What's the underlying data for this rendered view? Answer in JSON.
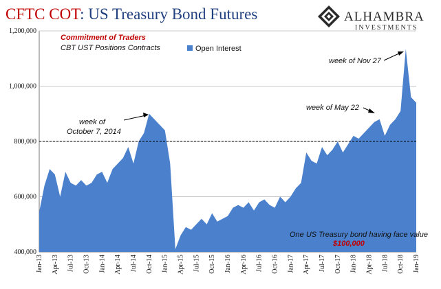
{
  "header": {
    "title_part1": "CFTC COT",
    "title_part2": ": US Treasury Bond Futures",
    "logo_name": "ALHAMBRA",
    "logo_sub": "INVESTMENTS"
  },
  "colors": {
    "title_red": "#c00000",
    "title_blue": "#1f3f7f",
    "area": "#4a80cc",
    "note_red": "#c00000"
  },
  "chart_data": {
    "type": "area",
    "subtitle_red": "Commitment of Traders",
    "subtitle": "CBT UST Positions Contracts",
    "series": [
      {
        "name": "Open Interest",
        "x": [
          "2013-01",
          "2013-02",
          "2013-03",
          "2013-04",
          "2013-05",
          "2013-06",
          "2013-07",
          "2013-08",
          "2013-09",
          "2013-10",
          "2013-11",
          "2013-12",
          "2014-01",
          "2014-02",
          "2014-03",
          "2014-04",
          "2014-05",
          "2014-06",
          "2014-07",
          "2014-08",
          "2014-09",
          "2014-10",
          "2014-11",
          "2014-12",
          "2015-01",
          "2015-02",
          "2015-03",
          "2015-04",
          "2015-05",
          "2015-06",
          "2015-07",
          "2015-08",
          "2015-09",
          "2015-10",
          "2015-11",
          "2015-12",
          "2016-01",
          "2016-02",
          "2016-03",
          "2016-04",
          "2016-05",
          "2016-06",
          "2016-07",
          "2016-08",
          "2016-09",
          "2016-10",
          "2016-11",
          "2016-12",
          "2017-01",
          "2017-02",
          "2017-03",
          "2017-04",
          "2017-05",
          "2017-06",
          "2017-07",
          "2017-08",
          "2017-09",
          "2017-10",
          "2017-11",
          "2017-12",
          "2018-01",
          "2018-02",
          "2018-03",
          "2018-04",
          "2018-05",
          "2018-06",
          "2018-07",
          "2018-08",
          "2018-09",
          "2018-10",
          "2018-11",
          "2018-12",
          "2019-01"
        ],
        "values": [
          545000,
          640000,
          700000,
          680000,
          600000,
          690000,
          650000,
          640000,
          660000,
          640000,
          650000,
          680000,
          690000,
          650000,
          700000,
          720000,
          740000,
          780000,
          720000,
          800000,
          830000,
          900000,
          880000,
          860000,
          840000,
          720000,
          410000,
          460000,
          490000,
          480000,
          500000,
          520000,
          500000,
          540000,
          510000,
          520000,
          530000,
          560000,
          570000,
          560000,
          580000,
          550000,
          580000,
          590000,
          570000,
          560000,
          600000,
          580000,
          600000,
          630000,
          650000,
          760000,
          730000,
          720000,
          780000,
          750000,
          770000,
          800000,
          760000,
          790000,
          820000,
          810000,
          830000,
          850000,
          870000,
          880000,
          820000,
          860000,
          880000,
          910000,
          1135000,
          960000,
          940000
        ]
      }
    ],
    "yticks": [
      "400,000",
      "600,000",
      "800,000",
      "1,000,000",
      "1,200,000"
    ],
    "ylim": [
      400000,
      1200000
    ],
    "xticks": [
      "Jan-13",
      "Apr-13",
      "Jul-13",
      "Oct-13",
      "Jan-14",
      "Apr-14",
      "Jul-14",
      "Oct-14",
      "Jan-15",
      "Apr-15",
      "Jul-15",
      "Oct-15",
      "Jan-16",
      "Apr-16",
      "Jul-16",
      "Oct-16",
      "Jan-17",
      "Apr-17",
      "Jul-17",
      "Oct-17",
      "Jan-18",
      "Apr-18",
      "Jul-18",
      "Oct-18",
      "Jan-19"
    ],
    "reference_line": 800000,
    "grid": true,
    "annotations": {
      "oct2014_line1": "week of",
      "oct2014_line2": "October 7, 2014",
      "may22": "week of May 22",
      "nov27": "week of Nov 27",
      "face_value": "One US Treasury bond having face value",
      "face_value_amount": "$100,000"
    }
  }
}
